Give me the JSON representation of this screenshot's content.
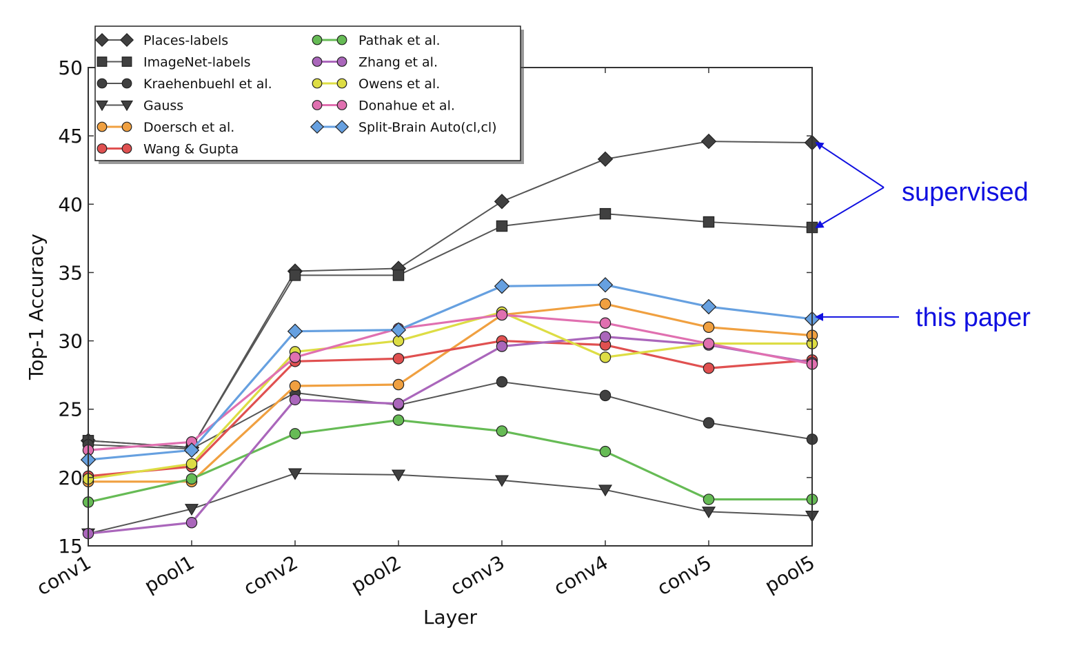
{
  "chart_data": {
    "type": "line",
    "xlabel": "Layer",
    "ylabel": "Top-1 Accuracy",
    "categories": [
      "conv1",
      "pool1",
      "conv2",
      "pool2",
      "conv3",
      "conv4",
      "conv5",
      "pool5"
    ],
    "ylim": [
      15,
      50
    ],
    "yticks": [
      15,
      20,
      25,
      30,
      35,
      40,
      45,
      50
    ],
    "grid": false,
    "legend_position": "top-left",
    "legend_columns": 2,
    "series": [
      {
        "name": "Places-labels",
        "marker": "diamond",
        "color": "#404040",
        "values": [
          22.7,
          22.2,
          35.1,
          35.3,
          40.2,
          43.3,
          44.6,
          44.5
        ]
      },
      {
        "name": "ImageNet-labels",
        "marker": "square",
        "color": "#404040",
        "values": [
          22.7,
          22.2,
          34.8,
          34.8,
          38.4,
          39.3,
          38.7,
          38.3
        ]
      },
      {
        "name": "Kraehenbuehl et al.",
        "marker": "circle",
        "color": "#404040",
        "values": [
          22.4,
          22.1,
          26.2,
          25.3,
          27.0,
          26.0,
          24.0,
          22.8
        ]
      },
      {
        "name": "Gauss",
        "marker": "triangle-down",
        "color": "#404040",
        "values": [
          15.9,
          17.7,
          20.3,
          20.2,
          19.8,
          19.1,
          17.5,
          17.2
        ]
      },
      {
        "name": "Doersch et al.",
        "marker": "circle",
        "color": "#f0a040",
        "values": [
          19.7,
          19.7,
          26.7,
          26.8,
          31.9,
          32.7,
          31.0,
          30.4
        ]
      },
      {
        "name": "Wang & Gupta",
        "marker": "circle",
        "color": "#e05050",
        "values": [
          20.1,
          20.8,
          28.5,
          28.7,
          30.0,
          29.7,
          28.0,
          28.6
        ]
      },
      {
        "name": "Pathak et al.",
        "marker": "circle",
        "color": "#66bb55",
        "values": [
          18.2,
          19.9,
          23.2,
          24.2,
          23.4,
          21.9,
          18.4,
          18.4
        ]
      },
      {
        "name": "Zhang et al.",
        "marker": "circle",
        "color": "#aa66bb",
        "values": [
          15.9,
          16.7,
          25.7,
          25.4,
          29.6,
          30.3,
          29.7,
          28.4
        ]
      },
      {
        "name": "Owens et al.",
        "marker": "circle",
        "color": "#dddd44",
        "values": [
          19.9,
          21.0,
          29.2,
          30.0,
          32.1,
          28.8,
          29.8,
          29.8
        ]
      },
      {
        "name": "Donahue et al.",
        "marker": "circle",
        "color": "#e070b0",
        "values": [
          22.0,
          22.6,
          28.8,
          30.9,
          31.9,
          31.3,
          29.8,
          28.3
        ]
      },
      {
        "name": "Split-Brain Auto(cl,cl)",
        "marker": "diamond",
        "color": "#66a0e0",
        "values": [
          21.3,
          22.0,
          30.7,
          30.8,
          34.0,
          34.1,
          32.5,
          31.6
        ]
      }
    ],
    "annotations": [
      {
        "text": "supervised",
        "color": "#1010e0",
        "points_to_series": [
          "Places-labels",
          "ImageNet-labels"
        ]
      },
      {
        "text": "this paper",
        "color": "#1010e0",
        "points_to_series": [
          "Split-Brain Auto(cl,cl)"
        ]
      }
    ]
  }
}
